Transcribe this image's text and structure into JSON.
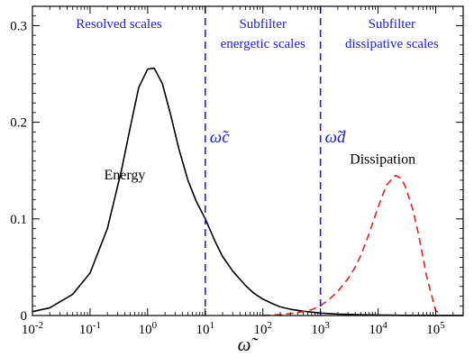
{
  "chart_data": {
    "type": "line",
    "xscale": "log",
    "xlim": [
      0.01,
      300000
    ],
    "ylim": [
      0,
      0.32
    ],
    "grid": false,
    "xlabel": "ω̃",
    "ylabel": "",
    "x_ticks": [
      {
        "value": 0.01,
        "base": "10",
        "exp": "-2"
      },
      {
        "value": 0.1,
        "base": "10",
        "exp": "-1"
      },
      {
        "value": 1,
        "base": "10",
        "exp": "0"
      },
      {
        "value": 10,
        "base": "10",
        "exp": "1"
      },
      {
        "value": 100,
        "base": "10",
        "exp": "2"
      },
      {
        "value": 1000,
        "base": "10",
        "exp": "3"
      },
      {
        "value": 10000,
        "base": "10",
        "exp": "4"
      },
      {
        "value": 100000,
        "base": "10",
        "exp": "5"
      }
    ],
    "y_ticks": [
      {
        "value": 0,
        "label": "0"
      },
      {
        "value": 0.1,
        "label": "0.1"
      },
      {
        "value": 0.2,
        "label": "0.2"
      },
      {
        "value": 0.3,
        "label": "0.3"
      }
    ],
    "series": [
      {
        "name": "Energy",
        "color": "#000000",
        "style": "solid",
        "x": [
          0.01,
          0.02,
          0.05,
          0.1,
          0.2,
          0.35,
          0.5,
          0.7,
          1.0,
          1.3,
          1.8,
          2.5,
          3.5,
          5,
          7,
          10,
          15,
          20,
          30,
          50,
          70,
          100,
          150,
          200,
          300,
          500,
          1000,
          2000,
          5000,
          10000,
          30000,
          100000,
          300000
        ],
        "values": [
          0.004,
          0.008,
          0.022,
          0.044,
          0.09,
          0.15,
          0.195,
          0.236,
          0.255,
          0.256,
          0.24,
          0.208,
          0.172,
          0.14,
          0.118,
          0.1,
          0.076,
          0.061,
          0.046,
          0.031,
          0.023,
          0.017,
          0.012,
          0.009,
          0.0065,
          0.0045,
          0.0025,
          0.0015,
          0.0008,
          0.0005,
          0.0002,
          0.0001,
          0.0
        ]
      },
      {
        "name": "Dissipation",
        "color": "#e02020",
        "style": "dashed",
        "x": [
          100,
          200,
          300,
          500,
          700,
          1000,
          1500,
          2000,
          3000,
          4000,
          5000,
          7000,
          10000,
          14000,
          20000,
          25000,
          30000,
          40000,
          50000,
          70000,
          100000,
          130000
        ],
        "values": [
          0.0,
          0.001,
          0.002,
          0.004,
          0.006,
          0.01,
          0.018,
          0.025,
          0.038,
          0.05,
          0.062,
          0.085,
          0.112,
          0.135,
          0.145,
          0.142,
          0.133,
          0.11,
          0.085,
          0.04,
          0.005,
          0.0
        ]
      }
    ],
    "vertical_lines": [
      {
        "x": 10,
        "color": "#2020d0",
        "style": "dashed",
        "label": "ω̃c"
      },
      {
        "x": 1000,
        "color": "#2020d0",
        "style": "dashed",
        "label": "ω̃d"
      }
    ],
    "regions": [
      {
        "lines": [
          "Resolved scales"
        ],
        "from": 0.01,
        "to": 10
      },
      {
        "lines": [
          "Subfilter",
          "energetic scales"
        ],
        "from": 10,
        "to": 1000
      },
      {
        "lines": [
          "Subfilter",
          "dissipative scales"
        ],
        "from": 1000,
        "to": 300000
      }
    ],
    "annotations": [
      {
        "text": "Energy",
        "x": 0.4,
        "y": 0.141
      },
      {
        "text": "Dissipation",
        "x": 12000,
        "y": 0.157
      }
    ]
  }
}
